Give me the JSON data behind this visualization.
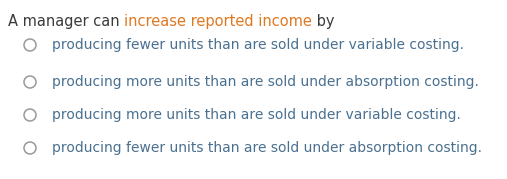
{
  "title_parts": [
    {
      "text": "A manager can ",
      "color": "#3a3a3a"
    },
    {
      "text": "increase reported income",
      "color": "#e07820"
    },
    {
      "text": " by",
      "color": "#3a3a3a"
    }
  ],
  "options": [
    "producing fewer units than are sold under variable costing.",
    "producing more units than are sold under absorption costing.",
    "producing more units than are sold under variable costing.",
    "producing fewer units than are sold under absorption costing."
  ],
  "option_color": "#4a7090",
  "circle_edgecolor": "#999999",
  "background_color": "#ffffff",
  "title_fontsize": 10.5,
  "option_fontsize": 10.0,
  "fig_width": 5.07,
  "fig_height": 1.79,
  "dpi": 100
}
